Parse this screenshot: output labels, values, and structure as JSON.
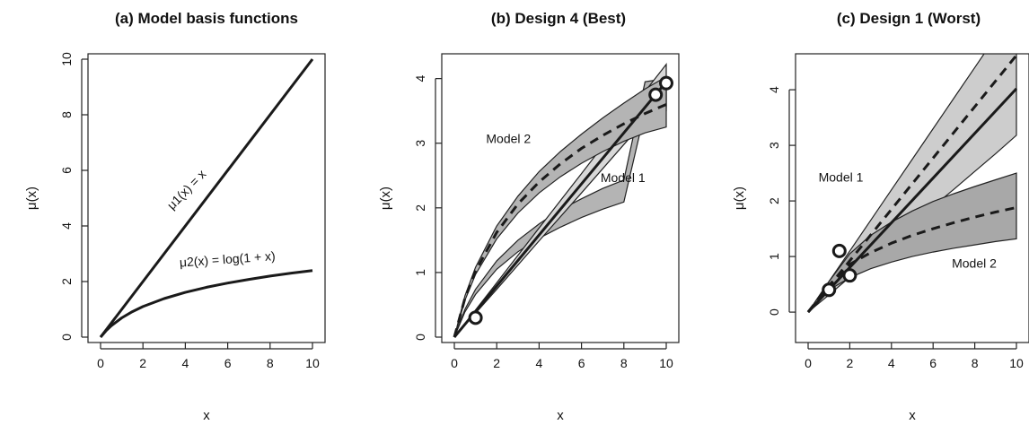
{
  "chart_data": [
    {
      "type": "line",
      "title": "(a) Model basis functions",
      "xlabel": "x",
      "ylabel": "μ(x)",
      "xlim": [
        0,
        10
      ],
      "ylim": [
        0,
        10
      ],
      "xticks": [
        0,
        2,
        4,
        6,
        8,
        10
      ],
      "yticks": [
        0,
        2,
        4,
        6,
        8,
        10
      ],
      "series": [
        {
          "x": [
            0,
            10
          ],
          "y": [
            0,
            10
          ],
          "style": "solid"
        },
        {
          "x": [
            0,
            0.25,
            0.5,
            1,
            1.5,
            2,
            3,
            4,
            5,
            6,
            7,
            8,
            9,
            10
          ],
          "y": [
            0,
            0.223,
            0.405,
            0.693,
            0.916,
            1.099,
            1.386,
            1.609,
            1.792,
            1.946,
            2.079,
            2.197,
            2.303,
            2.398
          ],
          "style": "solid"
        }
      ],
      "annotations": [
        {
          "text": "μ1(x) = x",
          "x": 4.2,
          "y": 5.2,
          "angle": -46
        },
        {
          "text": "μ2(x) = log(1 + x)",
          "x": 6.0,
          "y": 2.65,
          "angle": -4
        }
      ]
    },
    {
      "type": "line",
      "title": "(b) Design 4 (Best)",
      "xlabel": "x",
      "ylabel": "μ(x)",
      "xlim": [
        0,
        10
      ],
      "ylim": [
        0,
        4.3
      ],
      "xticks": [
        0,
        2,
        4,
        6,
        8,
        10
      ],
      "yticks": [
        0,
        1,
        2,
        3,
        4
      ],
      "bands": [
        {
          "x": [
            0,
            0.5,
            1,
            2,
            3,
            4,
            5,
            6,
            7,
            8,
            9,
            10
          ],
          "lower": [
            0,
            0.39,
            0.66,
            1.05,
            1.32,
            1.53,
            1.7,
            1.85,
            1.98,
            2.09,
            3.5,
            3.5
          ],
          "upper": [
            0,
            0.43,
            0.74,
            1.18,
            1.5,
            1.75,
            1.97,
            2.14,
            2.3,
            2.43,
            3.95,
            4.0
          ],
          "fill": "#b4b4b4",
          "note": "Model 2 band (displayed curved band)"
        },
        {
          "x": [
            0,
            2,
            4,
            6,
            8,
            9,
            10
          ],
          "lower": [
            0,
            0.74,
            1.49,
            2.23,
            2.98,
            3.35,
            3.55
          ],
          "upper": [
            0,
            0.84,
            1.69,
            2.53,
            3.38,
            3.8,
            4.22
          ],
          "fill": "#d8d8d8",
          "note": "Model 1 band"
        }
      ],
      "series": [
        {
          "name": "Model 1",
          "x": [
            0,
            10
          ],
          "y": [
            0,
            3.95
          ],
          "style": "solid"
        },
        {
          "name": "Model 2",
          "x": [
            0,
            0.5,
            1,
            2,
            3,
            4,
            5,
            6,
            7,
            8,
            9,
            10
          ],
          "y": [
            0,
            0.6,
            1.02,
            1.62,
            2.06,
            2.4,
            2.68,
            2.92,
            3.12,
            3.3,
            3.46,
            3.6
          ],
          "style": "dashed"
        }
      ],
      "model2_band": {
        "x": [
          0,
          0.5,
          1,
          2,
          3,
          4,
          5,
          6,
          7,
          8,
          9,
          10
        ],
        "lower": [
          0,
          0.57,
          0.97,
          1.52,
          1.92,
          2.23,
          2.48,
          2.69,
          2.87,
          3.03,
          3.16,
          3.25
        ],
        "upper": [
          0,
          0.64,
          1.08,
          1.72,
          2.18,
          2.56,
          2.87,
          3.14,
          3.39,
          3.62,
          3.84,
          4.03
        ]
      },
      "points": [
        {
          "x": 1,
          "y": 0.3
        },
        {
          "x": 9.5,
          "y": 3.75
        },
        {
          "x": 10,
          "y": 3.93
        }
      ],
      "labels": [
        {
          "text": "Model 2",
          "x": 1.5,
          "y": 3.0
        },
        {
          "text": "Model 1",
          "x": 6.9,
          "y": 2.4
        }
      ]
    },
    {
      "type": "line",
      "title": "(c) Design 1 (Worst)",
      "xlabel": "x",
      "ylabel": "μ(x)",
      "xlim": [
        0,
        10
      ],
      "ylim": [
        -0.45,
        4.55
      ],
      "xticks": [
        0,
        2,
        4,
        6,
        8,
        10
      ],
      "yticks": [
        0,
        1,
        2,
        3,
        4
      ],
      "bands": [
        {
          "x": [
            0,
            1,
            2,
            3,
            4,
            5,
            6,
            7,
            8,
            9,
            10
          ],
          "lower": [
            0,
            0.31,
            0.63,
            0.95,
            1.26,
            1.58,
            1.9,
            2.21,
            2.53,
            2.85,
            3.18
          ],
          "upper": [
            0,
            0.55,
            1.1,
            1.65,
            2.2,
            2.75,
            3.3,
            3.85,
            4.4,
            4.95,
            5.5
          ],
          "fill": "#cdcdcd",
          "note": "Model 1 band"
        },
        {
          "x": [
            0,
            1,
            2,
            3,
            4,
            5,
            6,
            7,
            8,
            9,
            10
          ],
          "lower": [
            0,
            0.4,
            0.62,
            0.78,
            0.9,
            1.0,
            1.08,
            1.15,
            1.21,
            1.27,
            1.32
          ],
          "upper": [
            0,
            0.55,
            1.05,
            1.38,
            1.62,
            1.82,
            1.99,
            2.13,
            2.26,
            2.38,
            2.5
          ],
          "fill": "#a8a8a8",
          "note": "Model 2 band"
        }
      ],
      "series": [
        {
          "name": "Model 1",
          "x": [
            0,
            10
          ],
          "y": [
            0,
            4.02
          ],
          "style": "solid"
        },
        {
          "name": "Model 1",
          "x": [
            0,
            10
          ],
          "y": [
            0,
            4.62
          ],
          "style": "dashed"
        },
        {
          "name": "Model 2",
          "x": [
            0,
            1,
            2,
            3,
            4,
            5,
            6,
            7,
            8,
            9,
            10
          ],
          "y": [
            0,
            0.48,
            0.86,
            1.07,
            1.24,
            1.38,
            1.5,
            1.61,
            1.71,
            1.8,
            1.88
          ],
          "style": "dashed"
        }
      ],
      "points": [
        {
          "x": 1,
          "y": 0.4
        },
        {
          "x": 1.5,
          "y": 1.1
        },
        {
          "x": 2,
          "y": 0.66
        }
      ],
      "labels": [
        {
          "text": "Model 1",
          "x": 0.5,
          "y": 2.35
        },
        {
          "text": "Model 2",
          "x": 6.9,
          "y": 0.8
        }
      ]
    }
  ]
}
